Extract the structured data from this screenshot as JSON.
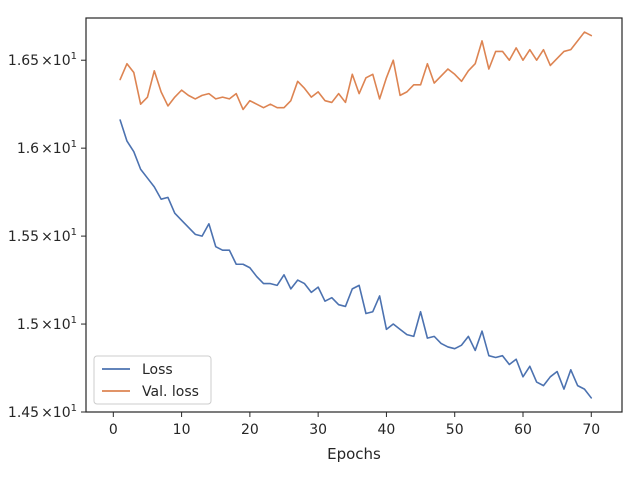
{
  "chart_data": {
    "type": "line",
    "xlabel": "Epochs",
    "ylabel": "",
    "xlim": [
      -4.0,
      74.5
    ],
    "ylim": [
      14.5,
      16.74
    ],
    "x_ticks": [
      0,
      10,
      20,
      30,
      40,
      50,
      60,
      70
    ],
    "y_ticks": [
      {
        "value": 14.5,
        "mantissa": "1.45",
        "multiplier": "×10",
        "exponent": "1"
      },
      {
        "value": 15.0,
        "mantissa": "1.5",
        "multiplier": "×10",
        "exponent": "1"
      },
      {
        "value": 15.5,
        "mantissa": "1.55",
        "multiplier": "×10",
        "exponent": "1"
      },
      {
        "value": 16.0,
        "mantissa": "1.6",
        "multiplier": "×10",
        "exponent": "1"
      },
      {
        "value": 16.5,
        "mantissa": "1.65",
        "multiplier": "×10",
        "exponent": "1"
      }
    ],
    "grid": false,
    "legend_position": "lower-left",
    "series": [
      {
        "name": "Loss",
        "color": "#4c72b0",
        "x": [
          1,
          2,
          3,
          4,
          5,
          6,
          7,
          8,
          9,
          10,
          11,
          12,
          13,
          14,
          15,
          16,
          17,
          18,
          19,
          20,
          21,
          22,
          23,
          24,
          25,
          26,
          27,
          28,
          29,
          30,
          31,
          32,
          33,
          34,
          35,
          36,
          37,
          38,
          39,
          40,
          41,
          42,
          43,
          44,
          45,
          46,
          47,
          48,
          49,
          50,
          51,
          52,
          53,
          54,
          55,
          56,
          57,
          58,
          59,
          60,
          61,
          62,
          63,
          64,
          65,
          66,
          67,
          68,
          69,
          70
        ],
        "values": [
          16.16,
          16.04,
          15.98,
          15.88,
          15.83,
          15.78,
          15.71,
          15.72,
          15.63,
          15.59,
          15.55,
          15.51,
          15.5,
          15.57,
          15.44,
          15.42,
          15.42,
          15.34,
          15.34,
          15.32,
          15.27,
          15.23,
          15.23,
          15.22,
          15.28,
          15.2,
          15.25,
          15.23,
          15.18,
          15.21,
          15.13,
          15.15,
          15.11,
          15.1,
          15.2,
          15.22,
          15.06,
          15.07,
          15.16,
          14.97,
          15.0,
          14.97,
          14.94,
          14.93,
          15.07,
          14.92,
          14.93,
          14.89,
          14.87,
          14.86,
          14.88,
          14.93,
          14.85,
          14.96,
          14.82,
          14.81,
          14.82,
          14.77,
          14.8,
          14.7,
          14.76,
          14.67,
          14.65,
          14.7,
          14.73,
          14.63,
          14.74,
          14.65,
          14.63,
          14.58
        ]
      },
      {
        "name": "Val. loss",
        "color": "#dd8452",
        "x": [
          1,
          2,
          3,
          4,
          5,
          6,
          7,
          8,
          9,
          10,
          11,
          12,
          13,
          14,
          15,
          16,
          17,
          18,
          19,
          20,
          21,
          22,
          23,
          24,
          25,
          26,
          27,
          28,
          29,
          30,
          31,
          32,
          33,
          34,
          35,
          36,
          37,
          38,
          39,
          40,
          41,
          42,
          43,
          44,
          45,
          46,
          47,
          48,
          49,
          50,
          51,
          52,
          53,
          54,
          55,
          56,
          57,
          58,
          59,
          60,
          61,
          62,
          63,
          64,
          65,
          66,
          67,
          68,
          69,
          70
        ],
        "values": [
          16.39,
          16.48,
          16.43,
          16.25,
          16.29,
          16.44,
          16.32,
          16.24,
          16.29,
          16.33,
          16.3,
          16.28,
          16.3,
          16.31,
          16.28,
          16.29,
          16.28,
          16.31,
          16.22,
          16.27,
          16.25,
          16.23,
          16.25,
          16.23,
          16.23,
          16.27,
          16.38,
          16.34,
          16.29,
          16.32,
          16.27,
          16.26,
          16.31,
          16.26,
          16.42,
          16.31,
          16.4,
          16.42,
          16.28,
          16.4,
          16.5,
          16.3,
          16.32,
          16.36,
          16.36,
          16.48,
          16.37,
          16.41,
          16.45,
          16.42,
          16.38,
          16.44,
          16.48,
          16.61,
          16.45,
          16.55,
          16.55,
          16.5,
          16.57,
          16.5,
          16.56,
          16.5,
          16.56,
          16.47,
          16.51,
          16.55,
          16.56,
          16.61,
          16.66,
          16.64
        ]
      }
    ]
  }
}
